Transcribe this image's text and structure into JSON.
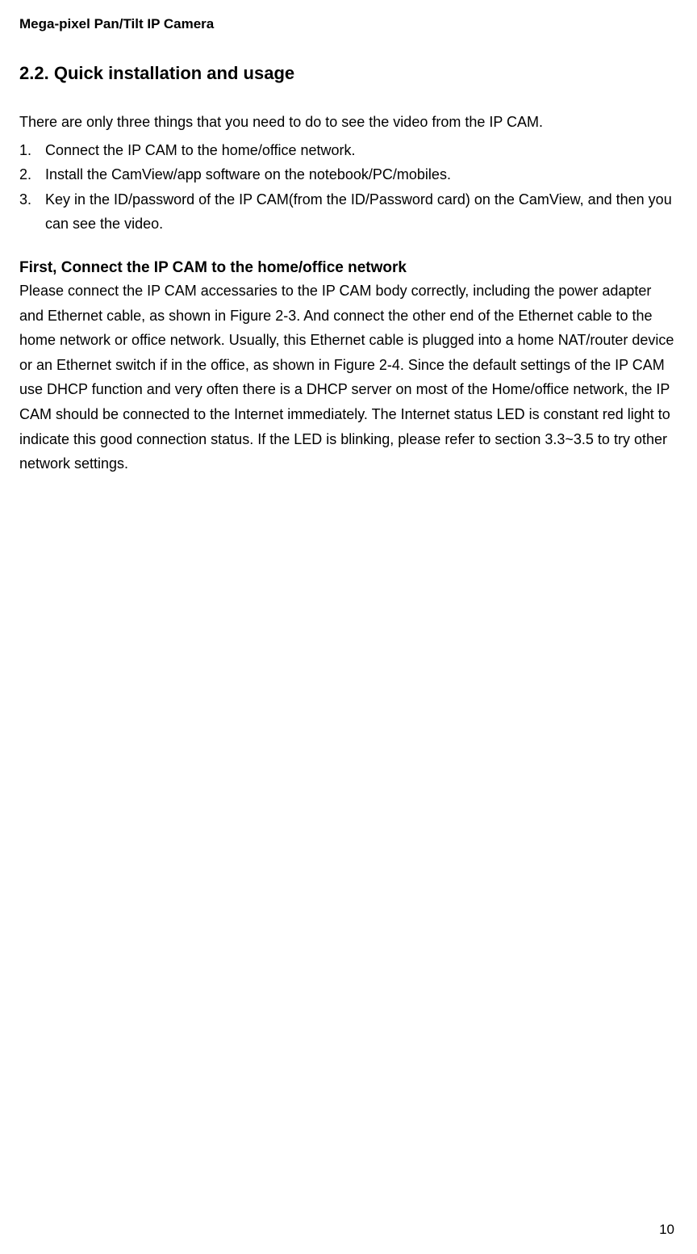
{
  "header": {
    "title": "Mega-pixel Pan/Tilt IP Camera"
  },
  "section": {
    "number": "2.2.",
    "title": "Quick installation and usage"
  },
  "intro": "There are only three things that you need to do to see the video from the IP CAM.",
  "steps": [
    {
      "num": "1.",
      "text": "Connect the IP CAM to the home/office network."
    },
    {
      "num": "2.",
      "text": "Install the CamView/app software on the notebook/PC/mobiles."
    },
    {
      "num": "3.",
      "text": "Key in the ID/password of the IP CAM(from the ID/Password card) on the CamView, and then you can see the video."
    }
  ],
  "subsection": {
    "heading": "First, Connect the IP CAM to the home/office network",
    "body": "Please connect the IP CAM accessaries to the IP CAM body correctly, including the power adapter and Ethernet cable, as shown in Figure 2-3. And connect the other end of the Ethernet cable to the home network or office network. Usually, this Ethernet cable is plugged into a home NAT/router device or an Ethernet switch if in the office, as shown in Figure 2-4. Since the default settings of the IP CAM use DHCP function and very often there is a DHCP server on most of the Home/office network, the IP CAM should be connected to the Internet immediately. The Internet status LED is constant red light to indicate this good connection status. If the LED is blinking, please refer to section 3.3~3.5 to try other network settings."
  },
  "page_number": "10"
}
